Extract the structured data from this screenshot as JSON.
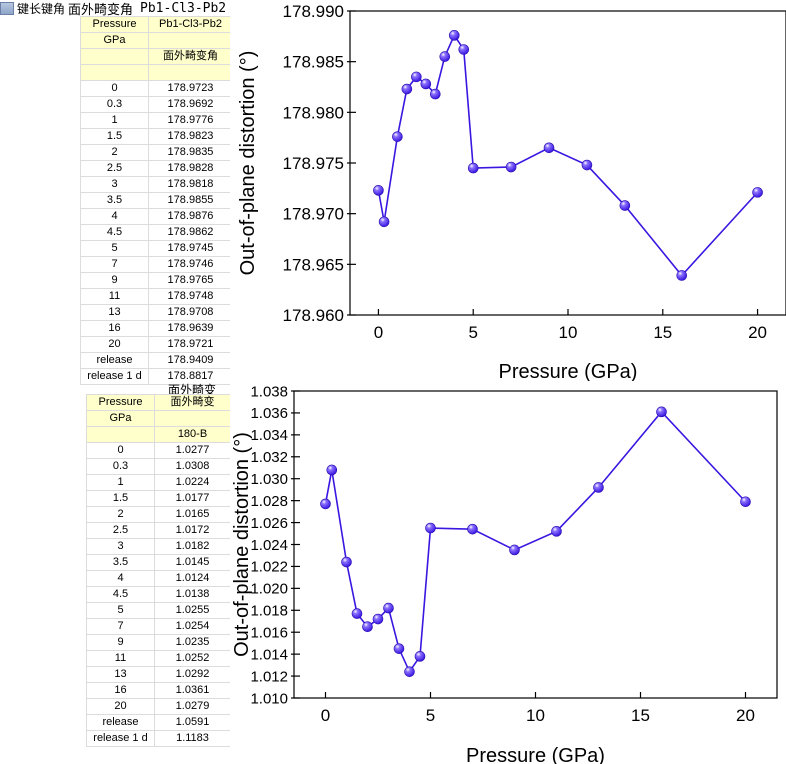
{
  "window": {
    "title": "键长键角",
    "sheet_name": "面外畸变角",
    "formula": "Pb1-Cl3-Pb2"
  },
  "table1": {
    "col_a": {
      "name": "Pressure",
      "units": "GPa",
      "comment": ""
    },
    "col_b": {
      "name": "Pb1-Cl3-Pb2",
      "units": "",
      "comment": "面外畸变角"
    },
    "rows": [
      [
        "0",
        "178.9723"
      ],
      [
        "0.3",
        "178.9692"
      ],
      [
        "1",
        "178.9776"
      ],
      [
        "1.5",
        "178.9823"
      ],
      [
        "2",
        "178.9835"
      ],
      [
        "2.5",
        "178.9828"
      ],
      [
        "3",
        "178.9818"
      ],
      [
        "3.5",
        "178.9855"
      ],
      [
        "4",
        "178.9876"
      ],
      [
        "4.5",
        "178.9862"
      ],
      [
        "5",
        "178.9745"
      ],
      [
        "7",
        "178.9746"
      ],
      [
        "9",
        "178.9765"
      ],
      [
        "11",
        "178.9748"
      ],
      [
        "13",
        "178.9708"
      ],
      [
        "16",
        "178.9639"
      ],
      [
        "20",
        "178.9721"
      ],
      [
        "release",
        "178.9409"
      ],
      [
        "release 1 d",
        "178.8817"
      ]
    ]
  },
  "table2": {
    "title_top": "面外畸变",
    "col_a": {
      "name": "Pressure",
      "units": "GPa",
      "comment": ""
    },
    "col_b": {
      "name": "面外畸变",
      "units": "",
      "comment": "180-B"
    },
    "rows": [
      [
        "0",
        "1.0277"
      ],
      [
        "0.3",
        "1.0308"
      ],
      [
        "1",
        "1.0224"
      ],
      [
        "1.5",
        "1.0177"
      ],
      [
        "2",
        "1.0165"
      ],
      [
        "2.5",
        "1.0172"
      ],
      [
        "3",
        "1.0182"
      ],
      [
        "3.5",
        "1.0145"
      ],
      [
        "4",
        "1.0124"
      ],
      [
        "4.5",
        "1.0138"
      ],
      [
        "5",
        "1.0255"
      ],
      [
        "7",
        "1.0254"
      ],
      [
        "9",
        "1.0235"
      ],
      [
        "11",
        "1.0252"
      ],
      [
        "13",
        "1.0292"
      ],
      [
        "16",
        "1.0361"
      ],
      [
        "20",
        "1.0279"
      ],
      [
        "release",
        "1.0591"
      ],
      [
        "release 1 d",
        "1.1183"
      ]
    ]
  },
  "chart_data": [
    {
      "type": "line",
      "xlabel": "Pressure (GPa)",
      "ylabel": "Out-of-plane distortion (°)",
      "xlim": [
        -1.5,
        21.5
      ],
      "ylim": [
        178.96,
        178.99
      ],
      "xticks": [
        0,
        5,
        10,
        15,
        20
      ],
      "yticks": [
        "178.960",
        "178.965",
        "178.970",
        "178.975",
        "178.980",
        "178.985",
        "178.990"
      ],
      "color": "#3a16e0",
      "x": [
        0,
        0.3,
        1,
        1.5,
        2,
        2.5,
        3,
        3.5,
        4,
        4.5,
        5,
        7,
        9,
        11,
        13,
        16,
        20
      ],
      "y": [
        178.9723,
        178.9692,
        178.9776,
        178.9823,
        178.9835,
        178.9828,
        178.9818,
        178.9855,
        178.9876,
        178.9862,
        178.9745,
        178.9746,
        178.9765,
        178.9748,
        178.9708,
        178.9639,
        178.9721
      ]
    },
    {
      "type": "line",
      "xlabel": "Pressure (GPa)",
      "ylabel": "Out-of-plane distortion (°)",
      "xlim": [
        -1.5,
        21.5
      ],
      "ylim": [
        1.01,
        1.038
      ],
      "xticks": [
        0,
        5,
        10,
        15,
        20
      ],
      "yticks": [
        "1.010",
        "1.012",
        "1.014",
        "1.016",
        "1.018",
        "1.020",
        "1.022",
        "1.024",
        "1.026",
        "1.028",
        "1.030",
        "1.032",
        "1.034",
        "1.036",
        "1.038"
      ],
      "color": "#3a16e0",
      "x": [
        0,
        0.3,
        1,
        1.5,
        2,
        2.5,
        3,
        3.5,
        4,
        4.5,
        5,
        7,
        9,
        11,
        13,
        16,
        20
      ],
      "y": [
        1.0277,
        1.0308,
        1.0224,
        1.0177,
        1.0165,
        1.0172,
        1.0182,
        1.0145,
        1.0124,
        1.0138,
        1.0255,
        1.0254,
        1.0235,
        1.0252,
        1.0292,
        1.0361,
        1.0279
      ]
    }
  ]
}
